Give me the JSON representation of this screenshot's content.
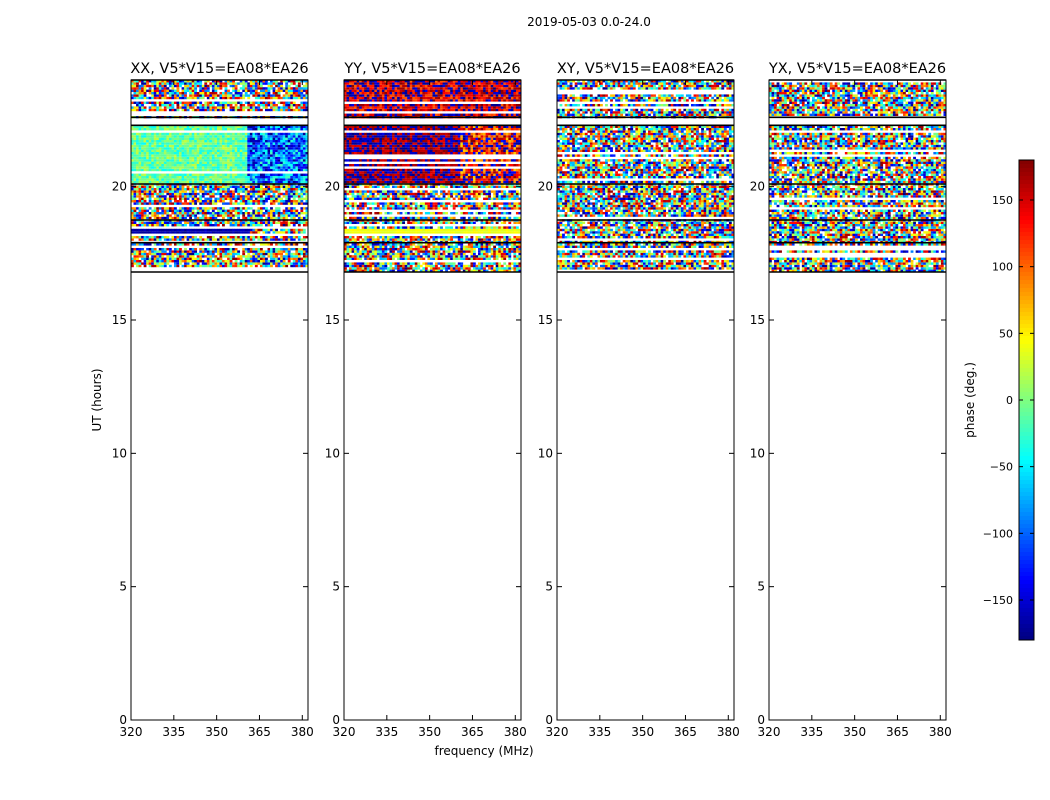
{
  "chart_data": {
    "type": "heatmap",
    "suptitle": "2019-05-03 0.0-24.0",
    "xlabel": "frequency (MHz)",
    "ylabel": "UT (hours)",
    "xlim": [
      320,
      382
    ],
    "ylim": [
      0,
      24
    ],
    "xticks": [
      "320",
      "335",
      "350",
      "365",
      "380"
    ],
    "yticks": [
      "0",
      "5",
      "10",
      "15",
      "20"
    ],
    "data_time_range_hours": [
      16.8,
      24.0
    ],
    "flagged_row_bands_hours": [
      [
        22.3,
        22.6
      ],
      [
        16.1,
        16.8
      ]
    ],
    "panels": [
      {
        "title": "XX, V5*V15=EA08*EA26",
        "correlation": "XX",
        "regions": [
          {
            "t0": 20.1,
            "t1": 22.3,
            "f0": 320,
            "f1": 361,
            "phase_mean": -10,
            "phase_spread": 35
          },
          {
            "t0": 20.1,
            "t1": 22.3,
            "f0": 361,
            "f1": 382,
            "phase_mean": -100,
            "phase_spread": 80
          },
          {
            "t0": 18.2,
            "t1": 18.4,
            "f0": 320,
            "f1": 362,
            "phase_mean": -165,
            "phase_spread": 12
          }
        ]
      },
      {
        "title": "YY, V5*V15=EA08*EA26",
        "correlation": "YY",
        "regions": [
          {
            "t0": 20.1,
            "t1": 22.3,
            "f0": 320,
            "f1": 361,
            "phase_mean": 178,
            "phase_spread": 40
          },
          {
            "t0": 20.1,
            "t1": 22.3,
            "f0": 361,
            "f1": 382,
            "phase_mean": 150,
            "phase_spread": 90
          },
          {
            "t0": 22.6,
            "t1": 24.0,
            "f0": 320,
            "f1": 382,
            "phase_mean": 160,
            "phase_spread": 60
          },
          {
            "t0": 18.2,
            "t1": 18.4,
            "f0": 320,
            "f1": 382,
            "phase_mean": 40,
            "phase_spread": 8
          }
        ]
      },
      {
        "title": "XY, V5*V15=EA08*EA26",
        "correlation": "XY",
        "regions": []
      },
      {
        "title": "YX, V5*V15=EA08*EA26",
        "correlation": "YX",
        "regions": []
      }
    ],
    "colorbar": {
      "label": "phase (deg.)",
      "range": [
        -180,
        180
      ],
      "ticks": [
        "150",
        "100",
        "50",
        "0",
        "−50",
        "−100",
        "−150"
      ],
      "tick_values": [
        150,
        100,
        50,
        0,
        -50,
        -100,
        -150
      ],
      "colormap": "jet"
    }
  }
}
